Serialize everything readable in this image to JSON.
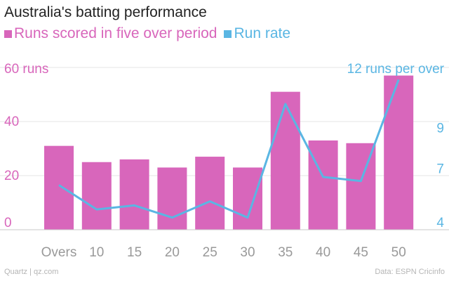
{
  "title": "Australia's batting performance",
  "legend": {
    "runs_label": "Runs scored in five over period",
    "rate_label": "Run rate"
  },
  "colors": {
    "bars": "#d866bb",
    "line": "#5ab6e3",
    "left_text": "#d866bb",
    "right_text": "#5ab6e3",
    "tick": "#999999",
    "grid": "#c8c8c8"
  },
  "footer": {
    "source_left": "Quartz | qz.com",
    "source_right": "Data: ESPN Cricinfo"
  },
  "chart_data": {
    "type": "bar",
    "title": "Australia's batting performance",
    "xlabel": "Overs",
    "categories": [
      "Overs",
      "10",
      "15",
      "20",
      "25",
      "30",
      "35",
      "40",
      "45",
      "50"
    ],
    "series": [
      {
        "name": "Runs scored in five over period",
        "type": "bar",
        "axis": "left",
        "values": [
          31,
          25,
          26,
          23,
          27,
          23,
          51,
          33,
          32,
          57
        ]
      },
      {
        "name": "Run rate",
        "type": "line",
        "axis": "right",
        "values": [
          6.2,
          5.0,
          5.2,
          4.6,
          5.4,
          4.6,
          10.2,
          6.6,
          6.4,
          11.4
        ]
      }
    ],
    "left_axis": {
      "ylim": [
        0,
        60
      ],
      "ticks": [
        {
          "value": 0,
          "label": "0"
        },
        {
          "value": 20,
          "label": "20"
        },
        {
          "value": 40,
          "label": "40"
        },
        {
          "value": 60,
          "label": "60 runs"
        }
      ]
    },
    "right_axis": {
      "ylim": [
        4,
        12
      ],
      "ticks": [
        {
          "value": 4,
          "label": "4"
        },
        {
          "value": 7,
          "label": "7"
        },
        {
          "value": 9,
          "label": "9"
        },
        {
          "value": 12,
          "label": "12 runs per over"
        }
      ]
    }
  }
}
